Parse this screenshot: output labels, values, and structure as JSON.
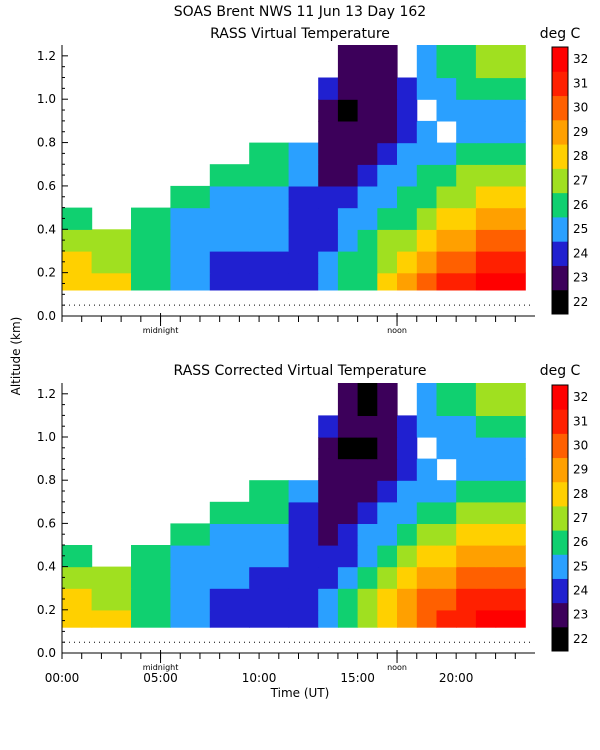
{
  "figure": {
    "title": "SOAS Brent NWS  11 Jun 13 Day 162",
    "ylabel": "Altitude (km)",
    "xlabel": "Time (UT)",
    "units": "deg C"
  },
  "panels": [
    {
      "title": "RASS Virtual Temperature"
    },
    {
      "title": "RASS Corrected Virtual Temperature"
    }
  ],
  "markers": {
    "midnight": "midnight",
    "noon": "noon"
  },
  "chart_data": [
    {
      "type": "heatmap",
      "title": "RASS Virtual Temperature",
      "ylabel": "Altitude (km)",
      "ylim": [
        0.0,
        1.25
      ],
      "yticks": [
        "0.0",
        "0.2",
        "0.4",
        "0.6",
        "0.8",
        "1.0",
        "1.2"
      ],
      "xlim": [
        0,
        24
      ],
      "x_hours": [
        0.5,
        2.5,
        4.5,
        6.5,
        8.5,
        10.5,
        12.5,
        13.5,
        14.5,
        15.5,
        16.5,
        17.5,
        18.5,
        19.5,
        20.5,
        21.5,
        22.5
      ],
      "y_km": [
        0.15,
        0.25,
        0.35,
        0.45,
        0.55,
        0.65,
        0.75,
        0.85,
        0.95,
        1.05,
        1.15
      ],
      "z_degC": [
        [
          28,
          28,
          26,
          25,
          24,
          24,
          24,
          25,
          26,
          26,
          28,
          29,
          30,
          31,
          31,
          32,
          32
        ],
        [
          28,
          27,
          26,
          25,
          24,
          24,
          24,
          25,
          26,
          26,
          27,
          28,
          29,
          30,
          30,
          31,
          31
        ],
        [
          27,
          27,
          26,
          25,
          25,
          25,
          24,
          24,
          25,
          26,
          27,
          27,
          28,
          29,
          29,
          30,
          30
        ],
        [
          26,
          null,
          26,
          25,
          25,
          25,
          24,
          24,
          25,
          25,
          26,
          26,
          27,
          28,
          28,
          29,
          29
        ],
        [
          null,
          null,
          null,
          26,
          25,
          25,
          24,
          24,
          24,
          25,
          25,
          26,
          26,
          27,
          27,
          28,
          28
        ],
        [
          null,
          null,
          null,
          null,
          26,
          26,
          25,
          23,
          23,
          24,
          25,
          25,
          26,
          26,
          27,
          27,
          27
        ],
        [
          null,
          null,
          null,
          null,
          null,
          26,
          25,
          23,
          23,
          23,
          24,
          25,
          25,
          25,
          26,
          26,
          26
        ],
        [
          null,
          null,
          null,
          null,
          null,
          null,
          null,
          23,
          23,
          23,
          23,
          24,
          25,
          null,
          25,
          25,
          25
        ],
        [
          null,
          null,
          null,
          null,
          null,
          null,
          null,
          23,
          22,
          23,
          23,
          24,
          null,
          25,
          25,
          25,
          25
        ],
        [
          null,
          null,
          null,
          null,
          null,
          null,
          null,
          24,
          23,
          23,
          23,
          24,
          25,
          25,
          26,
          26,
          26
        ],
        [
          null,
          null,
          null,
          null,
          null,
          null,
          null,
          null,
          23,
          23,
          23,
          null,
          25,
          26,
          26,
          27,
          27
        ]
      ],
      "colorbar": {
        "label": "deg C",
        "min": 22,
        "max": 33,
        "ticks": [
          22,
          23,
          24,
          25,
          26,
          27,
          28,
          29,
          30,
          31,
          32
        ]
      }
    },
    {
      "type": "heatmap",
      "title": "RASS Corrected Virtual Temperature",
      "ylabel": "Altitude (km)",
      "xlabel": "Time (UT)",
      "ylim": [
        0.0,
        1.25
      ],
      "yticks": [
        "0.0",
        "0.2",
        "0.4",
        "0.6",
        "0.8",
        "1.0",
        "1.2"
      ],
      "xlim": [
        0,
        24
      ],
      "xticks": [
        "00:00",
        "05:00",
        "10:00",
        "15:00",
        "20:00"
      ],
      "x_hours": [
        0.5,
        2.5,
        4.5,
        6.5,
        8.5,
        10.5,
        12.5,
        13.5,
        14.5,
        15.5,
        16.5,
        17.5,
        18.5,
        19.5,
        20.5,
        21.5,
        22.5
      ],
      "y_km": [
        0.15,
        0.25,
        0.35,
        0.45,
        0.55,
        0.65,
        0.75,
        0.85,
        0.95,
        1.05,
        1.15
      ],
      "z_degC": [
        [
          28,
          28,
          26,
          25,
          24,
          24,
          24,
          25,
          26,
          27,
          28,
          29,
          30,
          31,
          31,
          32,
          32
        ],
        [
          28,
          27,
          26,
          25,
          24,
          24,
          24,
          25,
          26,
          27,
          28,
          29,
          30,
          30,
          31,
          31,
          31
        ],
        [
          27,
          27,
          26,
          25,
          25,
          24,
          24,
          24,
          25,
          26,
          27,
          28,
          29,
          29,
          30,
          30,
          30
        ],
        [
          26,
          null,
          26,
          25,
          25,
          25,
          24,
          24,
          24,
          25,
          26,
          27,
          28,
          28,
          29,
          29,
          29
        ],
        [
          null,
          null,
          null,
          26,
          25,
          25,
          24,
          23,
          24,
          25,
          25,
          26,
          27,
          27,
          28,
          28,
          28
        ],
        [
          null,
          null,
          null,
          null,
          26,
          26,
          24,
          23,
          23,
          24,
          25,
          25,
          26,
          26,
          27,
          27,
          27
        ],
        [
          null,
          null,
          null,
          null,
          null,
          26,
          25,
          23,
          23,
          23,
          24,
          25,
          25,
          25,
          26,
          26,
          26
        ],
        [
          null,
          null,
          null,
          null,
          null,
          null,
          null,
          23,
          23,
          23,
          23,
          24,
          25,
          null,
          25,
          25,
          25
        ],
        [
          null,
          null,
          null,
          null,
          null,
          null,
          null,
          23,
          22,
          22,
          23,
          24,
          null,
          25,
          25,
          25,
          25
        ],
        [
          null,
          null,
          null,
          null,
          null,
          null,
          null,
          24,
          23,
          23,
          23,
          24,
          25,
          25,
          25,
          26,
          26
        ],
        [
          null,
          null,
          null,
          null,
          null,
          null,
          null,
          null,
          23,
          22,
          23,
          null,
          25,
          26,
          26,
          27,
          27
        ]
      ],
      "colorbar": {
        "label": "deg C",
        "min": 22,
        "max": 33,
        "ticks": [
          22,
          23,
          24,
          25,
          26,
          27,
          28,
          29,
          30,
          31,
          32
        ]
      }
    }
  ],
  "colorscale": [
    {
      "value": 22,
      "color": "#000000"
    },
    {
      "value": 23,
      "color": "#3c005a"
    },
    {
      "value": 24,
      "color": "#2020d0"
    },
    {
      "value": 25,
      "color": "#2aa0ff"
    },
    {
      "value": 26,
      "color": "#10d070"
    },
    {
      "value": 27,
      "color": "#a0e020"
    },
    {
      "value": 28,
      "color": "#ffd000"
    },
    {
      "value": 29,
      "color": "#ffa000"
    },
    {
      "value": 30,
      "color": "#ff6000"
    },
    {
      "value": 31,
      "color": "#ff2000"
    },
    {
      "value": 32,
      "color": "#ff0000"
    }
  ]
}
